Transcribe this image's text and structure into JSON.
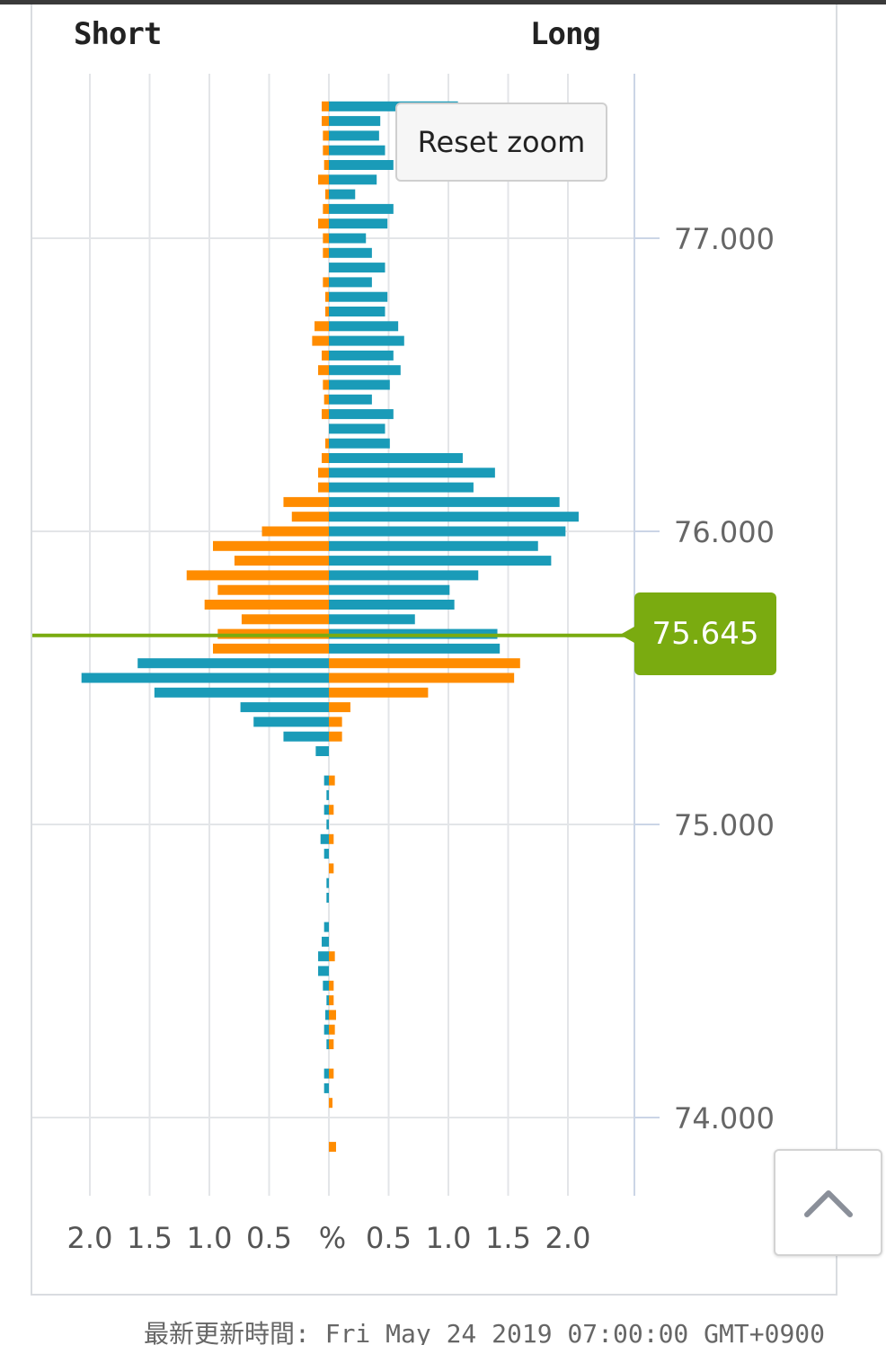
{
  "labels": {
    "short": "Short",
    "long": "Long"
  },
  "reset_zoom": "Reset zoom",
  "current_price": "75.645",
  "footer_text": "最新更新時間: Fri May 24 2019 07:00:00 GMT+0900",
  "icons": {
    "scroll_top": "chevron-up-icon"
  },
  "colors": {
    "teal": "#1a9bb8",
    "orange": "#ff8c00",
    "price_line": "#7aab10",
    "grid": "#e3e5e8",
    "axis": "#cbd5e6"
  },
  "chart_data": {
    "type": "bar",
    "orientation": "horizontal",
    "x_tick_labels": [
      "2.0",
      "1.5",
      "1.0",
      "0.5",
      "%",
      "0.5",
      "1.0",
      "1.5",
      "2.0"
    ],
    "xlim": [
      -2.0,
      2.0
    ],
    "y_tick_labels": [
      "77.000",
      "76.000",
      "75.000",
      "74.000"
    ],
    "y_ticks": [
      77.0,
      76.0,
      75.0,
      74.0
    ],
    "ylim": [
      73.73,
      77.52
    ],
    "current_price": 75.645,
    "grid": true,
    "bucket_size": 0.05,
    "levels": [
      {
        "price": 77.45,
        "teal": 1.08,
        "orange": -0.06
      },
      {
        "price": 77.4,
        "teal": 0.43,
        "orange": -0.06
      },
      {
        "price": 77.35,
        "teal": 0.42,
        "orange": -0.05
      },
      {
        "price": 77.3,
        "teal": 0.47,
        "orange": -0.05
      },
      {
        "price": 77.25,
        "teal": 0.54,
        "orange": -0.04
      },
      {
        "price": 77.2,
        "teal": 0.4,
        "orange": -0.09
      },
      {
        "price": 77.15,
        "teal": 0.22,
        "orange": -0.03
      },
      {
        "price": 77.1,
        "teal": 0.54,
        "orange": -0.05
      },
      {
        "price": 77.05,
        "teal": 0.49,
        "orange": -0.09
      },
      {
        "price": 77.0,
        "teal": 0.31,
        "orange": -0.05
      },
      {
        "price": 76.95,
        "teal": 0.36,
        "orange": -0.05
      },
      {
        "price": 76.9,
        "teal": 0.47,
        "orange": 0
      },
      {
        "price": 76.85,
        "teal": 0.36,
        "orange": -0.05
      },
      {
        "price": 76.8,
        "teal": 0.49,
        "orange": -0.03
      },
      {
        "price": 76.75,
        "teal": 0.47,
        "orange": -0.03
      },
      {
        "price": 76.7,
        "teal": 0.58,
        "orange": -0.12
      },
      {
        "price": 76.65,
        "teal": 0.63,
        "orange": -0.14
      },
      {
        "price": 76.6,
        "teal": 0.54,
        "orange": -0.06
      },
      {
        "price": 76.55,
        "teal": 0.6,
        "orange": -0.09
      },
      {
        "price": 76.5,
        "teal": 0.51,
        "orange": -0.05
      },
      {
        "price": 76.45,
        "teal": 0.36,
        "orange": -0.04
      },
      {
        "price": 76.4,
        "teal": 0.54,
        "orange": -0.06
      },
      {
        "price": 76.35,
        "teal": 0.47,
        "orange": 0
      },
      {
        "price": 76.3,
        "teal": 0.51,
        "orange": -0.03
      },
      {
        "price": 76.25,
        "teal": 1.12,
        "orange": -0.06
      },
      {
        "price": 76.2,
        "teal": 1.39,
        "orange": -0.09
      },
      {
        "price": 76.15,
        "teal": 1.21,
        "orange": -0.09
      },
      {
        "price": 76.1,
        "teal": 1.93,
        "orange": -0.38
      },
      {
        "price": 76.05,
        "teal": 2.09,
        "orange": -0.31
      },
      {
        "price": 76.0,
        "teal": 1.98,
        "orange": -0.56
      },
      {
        "price": 75.95,
        "teal": 1.75,
        "orange": -0.97
      },
      {
        "price": 75.9,
        "teal": 1.86,
        "orange": -0.79
      },
      {
        "price": 75.85,
        "teal": 1.25,
        "orange": -1.19
      },
      {
        "price": 75.8,
        "teal": 1.01,
        "orange": -0.93
      },
      {
        "price": 75.75,
        "teal": 1.05,
        "orange": -1.04
      },
      {
        "price": 75.7,
        "teal": 0.72,
        "orange": -0.73
      },
      {
        "price": 75.65,
        "teal": 1.41,
        "orange": -0.93
      },
      {
        "price": 75.6,
        "teal": 1.43,
        "orange": -0.97
      },
      {
        "price": 75.55,
        "teal": -1.6,
        "orange": 1.6
      },
      {
        "price": 75.5,
        "teal": -2.07,
        "orange": 1.55
      },
      {
        "price": 75.45,
        "teal": -1.46,
        "orange": 0.83
      },
      {
        "price": 75.4,
        "teal": -0.74,
        "orange": 0.18
      },
      {
        "price": 75.35,
        "teal": -0.63,
        "orange": 0.11
      },
      {
        "price": 75.3,
        "teal": -0.38,
        "orange": 0.11
      },
      {
        "price": 75.25,
        "teal": -0.11,
        "orange": 0
      },
      {
        "price": 75.15,
        "teal": -0.04,
        "orange": 0.05
      },
      {
        "price": 75.1,
        "teal": -0.02,
        "orange": 0
      },
      {
        "price": 75.05,
        "teal": -0.04,
        "orange": 0.04
      },
      {
        "price": 75.0,
        "teal": -0.02,
        "orange": 0
      },
      {
        "price": 74.95,
        "teal": -0.07,
        "orange": 0.04
      },
      {
        "price": 74.9,
        "teal": -0.04,
        "orange": 0
      },
      {
        "price": 74.85,
        "teal": 0,
        "orange": 0.04
      },
      {
        "price": 74.8,
        "teal": -0.02,
        "orange": 0
      },
      {
        "price": 74.75,
        "teal": -0.02,
        "orange": 0
      },
      {
        "price": 74.65,
        "teal": -0.04,
        "orange": 0
      },
      {
        "price": 74.6,
        "teal": -0.06,
        "orange": 0
      },
      {
        "price": 74.55,
        "teal": -0.09,
        "orange": 0.05
      },
      {
        "price": 74.5,
        "teal": -0.09,
        "orange": 0
      },
      {
        "price": 74.45,
        "teal": -0.05,
        "orange": 0.04
      },
      {
        "price": 74.4,
        "teal": -0.02,
        "orange": 0.04
      },
      {
        "price": 74.35,
        "teal": -0.03,
        "orange": 0.06
      },
      {
        "price": 74.3,
        "teal": -0.04,
        "orange": 0.05
      },
      {
        "price": 74.25,
        "teal": -0.02,
        "orange": 0.04
      },
      {
        "price": 74.15,
        "teal": -0.04,
        "orange": 0.04
      },
      {
        "price": 74.1,
        "teal": -0.04,
        "orange": 0
      },
      {
        "price": 74.05,
        "teal": 0,
        "orange": 0.03
      },
      {
        "price": 73.9,
        "teal": 0,
        "orange": 0.06
      }
    ]
  }
}
